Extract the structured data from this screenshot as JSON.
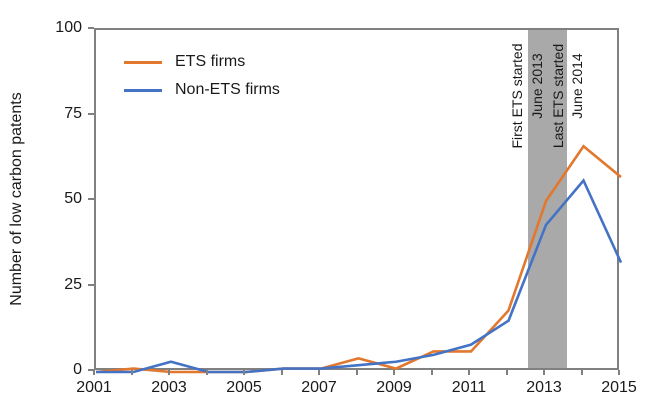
{
  "figure": {
    "background": "#ffffff",
    "frame_color": "#808080",
    "text_color": "#1a1a1a"
  },
  "chart_data": {
    "type": "line",
    "title": "",
    "xlabel": "",
    "ylabel": "Number of low carbon patents",
    "xlim": [
      2001,
      2015
    ],
    "ylim": [
      0,
      100
    ],
    "grid": false,
    "categories": [
      2001,
      2002,
      2003,
      2004,
      2005,
      2006,
      2007,
      2008,
      2009,
      2010,
      2011,
      2012,
      2013,
      2014,
      2015
    ],
    "x_tick_labels": [
      "2001",
      "2003",
      "2005",
      "2007",
      "2009",
      "2011",
      "2013",
      "2015"
    ],
    "y_ticks": [
      0,
      25,
      50,
      75,
      100
    ],
    "y_tick_labels": [
      "0",
      "25",
      "50",
      "75",
      "100"
    ],
    "series": [
      {
        "name": "ETS firms",
        "color": "#E2772E",
        "values": [
          0,
          1,
          0,
          0,
          0,
          1,
          1,
          4,
          1,
          6,
          6,
          18,
          50,
          66,
          57
        ]
      },
      {
        "name": "Non-ETS firms",
        "color": "#4473C5",
        "values": [
          0,
          0,
          3,
          0,
          0,
          1,
          1,
          2,
          3,
          5,
          8,
          15,
          43,
          56,
          32
        ]
      }
    ],
    "legend": {
      "position": "upper-left"
    },
    "shaded_region": {
      "x_start": 2012.52,
      "x_end": 2013.56,
      "color": "#A9A9A9",
      "annotations": [
        {
          "lines": [
            "First ETS started",
            "June 2013"
          ],
          "anchor": "left-edge"
        },
        {
          "lines": [
            "Last ETS started",
            "June 2014"
          ],
          "anchor": "right-edge"
        }
      ]
    }
  }
}
